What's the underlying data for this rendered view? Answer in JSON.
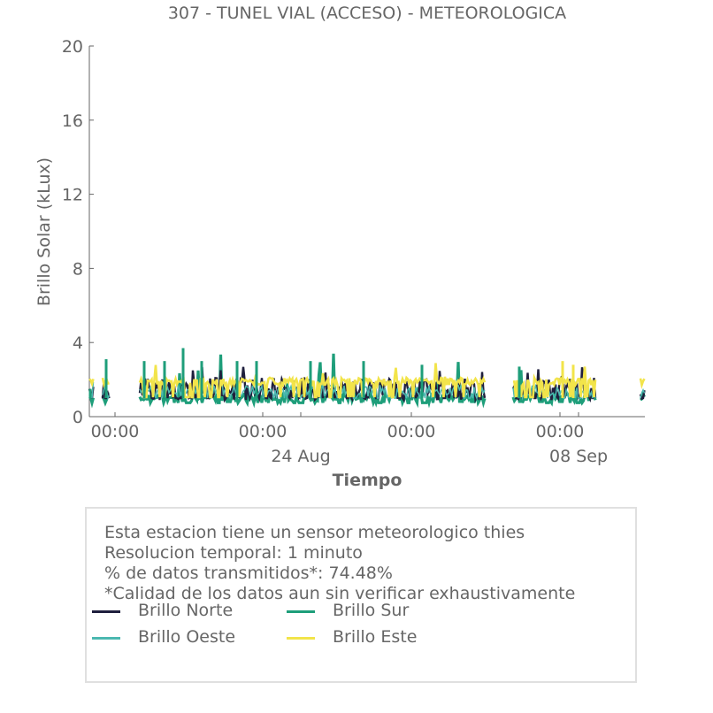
{
  "chart_data": {
    "type": "line",
    "title": "307 - TUNEL VIAL (ACCESO) - METEOROLOGICA",
    "xlabel": "Tiempo",
    "ylabel": "Brillo Solar (kLux)",
    "ylim": [
      0,
      20
    ],
    "yticks": [
      0,
      4,
      8,
      12,
      16,
      20
    ],
    "xticks": [
      {
        "label": "00:00",
        "sub": ""
      },
      {
        "label": "00:00",
        "sub": "24 Aug"
      },
      {
        "label": "00:00",
        "sub": ""
      },
      {
        "label": "00:00",
        "sub": "08 Sep"
      }
    ],
    "grid": false,
    "series": [
      {
        "name": "Brillo Norte",
        "color": "#1f1f3d"
      },
      {
        "name": "Brillo Sur",
        "color": "#1e9e7a"
      },
      {
        "name": "Brillo Oeste",
        "color": "#4bb8b0"
      },
      {
        "name": "Brillo Este",
        "color": "#f2e44a"
      }
    ],
    "typical_range": {
      "Brillo Norte": [
        1.0,
        2.3
      ],
      "Brillo Sur": [
        0.8,
        3.7
      ],
      "Brillo Oeste": [
        1.0,
        2.0
      ],
      "Brillo Este": [
        1.0,
        3.0
      ]
    }
  },
  "info": {
    "line1": "Esta estacion tiene un sensor meteorologico thies",
    "line2": "Resolucion temporal: 1 minuto",
    "line3": "% de datos transmitidos*: 74.48%",
    "line4": "*Calidad de los datos aun sin verificar exhaustivamente"
  }
}
